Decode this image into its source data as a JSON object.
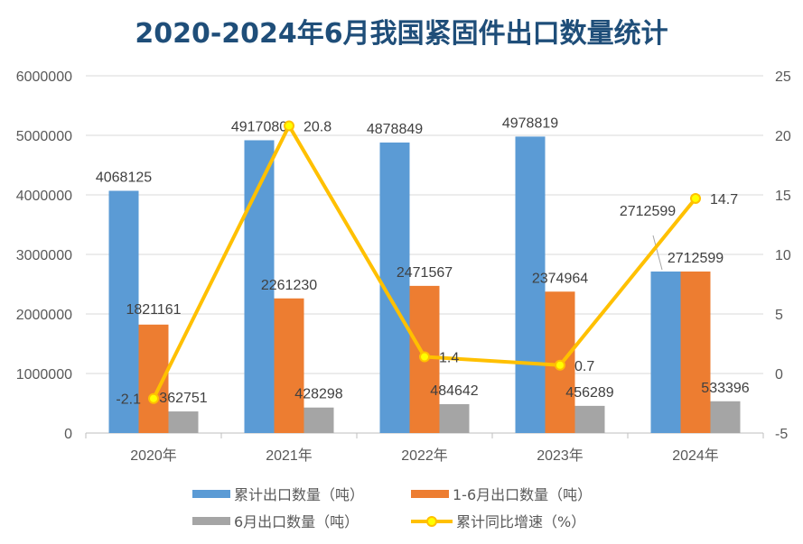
{
  "chart_data": {
    "type": "bar+line",
    "title": "2020-2024年6月我国紧固件出口数量统计",
    "categories": [
      "2020年",
      "2021年",
      "2022年",
      "2023年",
      "2024年"
    ],
    "series": [
      {
        "name": "累计出口数量（吨）",
        "type": "bar",
        "axis": "left",
        "color": "#5B9BD5",
        "values": [
          4068125,
          4917080,
          4878849,
          4978819,
          2712599
        ]
      },
      {
        "name": "1-6月出口数量（吨）",
        "type": "bar",
        "axis": "left",
        "color": "#ED7D31",
        "values": [
          1821161,
          2261230,
          2471567,
          2374964,
          2712599
        ]
      },
      {
        "name": "6月出口数量（吨）",
        "type": "bar",
        "axis": "left",
        "color": "#A5A5A5",
        "values": [
          362751,
          428298,
          484642,
          456289,
          533396
        ]
      },
      {
        "name": "累计同比增速（%）",
        "type": "line",
        "axis": "right",
        "color": "#FFC000",
        "values": [
          -2.1,
          20.8,
          1.4,
          0.7,
          14.7
        ]
      }
    ],
    "left_axis": {
      "range": [
        0,
        6000000
      ],
      "ticks": [
        "0",
        "1000000",
        "2000000",
        "3000000",
        "4000000",
        "5000000",
        "6000000"
      ]
    },
    "right_axis": {
      "range": [
        -5,
        25
      ],
      "ticks": [
        "-5",
        "0",
        "5",
        "10",
        "15",
        "20",
        "25"
      ]
    },
    "grid": true,
    "legend": "bottom"
  }
}
